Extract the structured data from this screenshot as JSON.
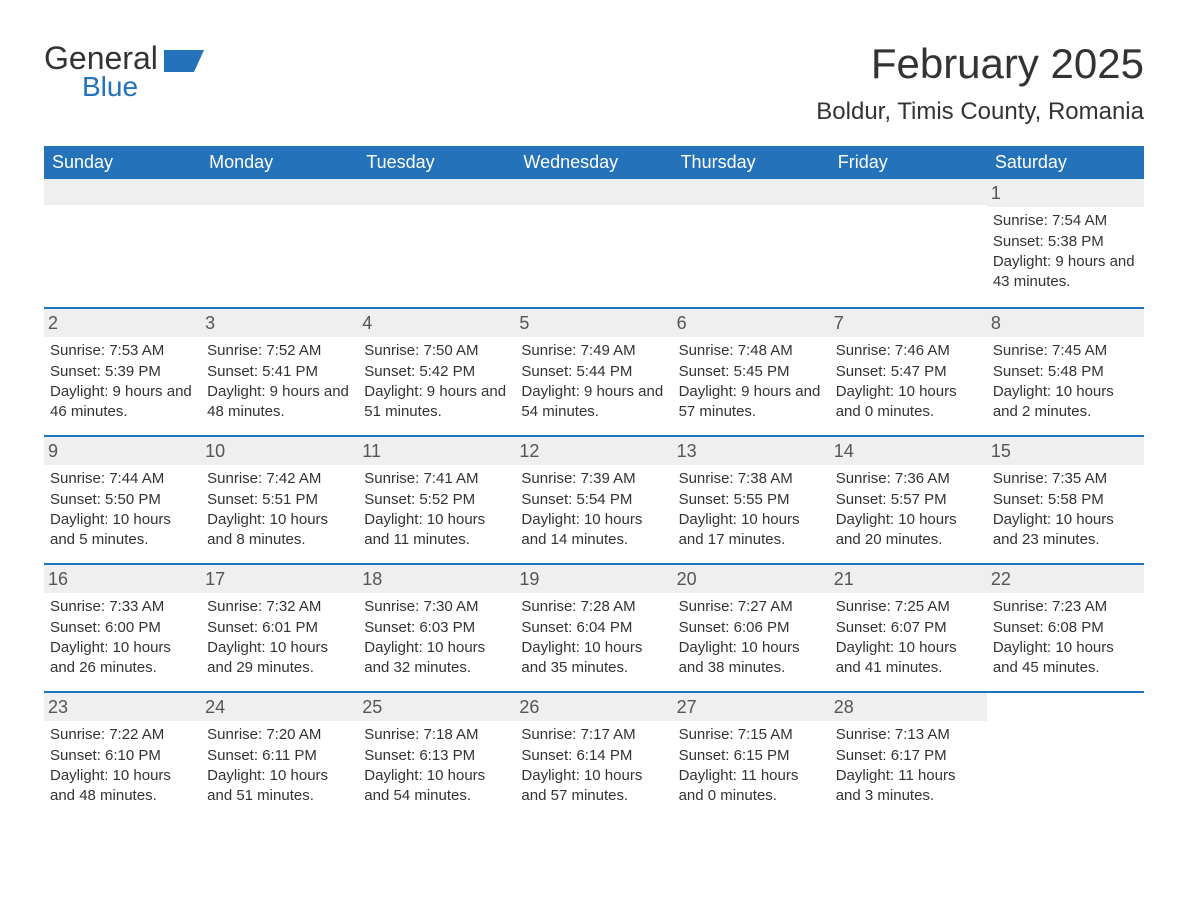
{
  "logo": {
    "text1": "General",
    "text2": "Blue"
  },
  "title": "February 2025",
  "location": "Boldur, Timis County, Romania",
  "colors": {
    "header_bg": "#2372ba",
    "header_text": "#ffffff",
    "daynum_bg": "#efefef",
    "text": "#333333",
    "border": "#2372ba",
    "logo_accent": "#2372ba"
  },
  "weekdays": [
    "Sunday",
    "Monday",
    "Tuesday",
    "Wednesday",
    "Thursday",
    "Friday",
    "Saturday"
  ],
  "weeks": [
    [
      null,
      null,
      null,
      null,
      null,
      null,
      {
        "n": "1",
        "sunrise": "7:54 AM",
        "sunset": "5:38 PM",
        "daylight": "9 hours and 43 minutes."
      }
    ],
    [
      {
        "n": "2",
        "sunrise": "7:53 AM",
        "sunset": "5:39 PM",
        "daylight": "9 hours and 46 minutes."
      },
      {
        "n": "3",
        "sunrise": "7:52 AM",
        "sunset": "5:41 PM",
        "daylight": "9 hours and 48 minutes."
      },
      {
        "n": "4",
        "sunrise": "7:50 AM",
        "sunset": "5:42 PM",
        "daylight": "9 hours and 51 minutes."
      },
      {
        "n": "5",
        "sunrise": "7:49 AM",
        "sunset": "5:44 PM",
        "daylight": "9 hours and 54 minutes."
      },
      {
        "n": "6",
        "sunrise": "7:48 AM",
        "sunset": "5:45 PM",
        "daylight": "9 hours and 57 minutes."
      },
      {
        "n": "7",
        "sunrise": "7:46 AM",
        "sunset": "5:47 PM",
        "daylight": "10 hours and 0 minutes."
      },
      {
        "n": "8",
        "sunrise": "7:45 AM",
        "sunset": "5:48 PM",
        "daylight": "10 hours and 2 minutes."
      }
    ],
    [
      {
        "n": "9",
        "sunrise": "7:44 AM",
        "sunset": "5:50 PM",
        "daylight": "10 hours and 5 minutes."
      },
      {
        "n": "10",
        "sunrise": "7:42 AM",
        "sunset": "5:51 PM",
        "daylight": "10 hours and 8 minutes."
      },
      {
        "n": "11",
        "sunrise": "7:41 AM",
        "sunset": "5:52 PM",
        "daylight": "10 hours and 11 minutes."
      },
      {
        "n": "12",
        "sunrise": "7:39 AM",
        "sunset": "5:54 PM",
        "daylight": "10 hours and 14 minutes."
      },
      {
        "n": "13",
        "sunrise": "7:38 AM",
        "sunset": "5:55 PM",
        "daylight": "10 hours and 17 minutes."
      },
      {
        "n": "14",
        "sunrise": "7:36 AM",
        "sunset": "5:57 PM",
        "daylight": "10 hours and 20 minutes."
      },
      {
        "n": "15",
        "sunrise": "7:35 AM",
        "sunset": "5:58 PM",
        "daylight": "10 hours and 23 minutes."
      }
    ],
    [
      {
        "n": "16",
        "sunrise": "7:33 AM",
        "sunset": "6:00 PM",
        "daylight": "10 hours and 26 minutes."
      },
      {
        "n": "17",
        "sunrise": "7:32 AM",
        "sunset": "6:01 PM",
        "daylight": "10 hours and 29 minutes."
      },
      {
        "n": "18",
        "sunrise": "7:30 AM",
        "sunset": "6:03 PM",
        "daylight": "10 hours and 32 minutes."
      },
      {
        "n": "19",
        "sunrise": "7:28 AM",
        "sunset": "6:04 PM",
        "daylight": "10 hours and 35 minutes."
      },
      {
        "n": "20",
        "sunrise": "7:27 AM",
        "sunset": "6:06 PM",
        "daylight": "10 hours and 38 minutes."
      },
      {
        "n": "21",
        "sunrise": "7:25 AM",
        "sunset": "6:07 PM",
        "daylight": "10 hours and 41 minutes."
      },
      {
        "n": "22",
        "sunrise": "7:23 AM",
        "sunset": "6:08 PM",
        "daylight": "10 hours and 45 minutes."
      }
    ],
    [
      {
        "n": "23",
        "sunrise": "7:22 AM",
        "sunset": "6:10 PM",
        "daylight": "10 hours and 48 minutes."
      },
      {
        "n": "24",
        "sunrise": "7:20 AM",
        "sunset": "6:11 PM",
        "daylight": "10 hours and 51 minutes."
      },
      {
        "n": "25",
        "sunrise": "7:18 AM",
        "sunset": "6:13 PM",
        "daylight": "10 hours and 54 minutes."
      },
      {
        "n": "26",
        "sunrise": "7:17 AM",
        "sunset": "6:14 PM",
        "daylight": "10 hours and 57 minutes."
      },
      {
        "n": "27",
        "sunrise": "7:15 AM",
        "sunset": "6:15 PM",
        "daylight": "11 hours and 0 minutes."
      },
      {
        "n": "28",
        "sunrise": "7:13 AM",
        "sunset": "6:17 PM",
        "daylight": "11 hours and 3 minutes."
      },
      null
    ]
  ],
  "labels": {
    "sunrise": "Sunrise:",
    "sunset": "Sunset:",
    "daylight": "Daylight:"
  }
}
